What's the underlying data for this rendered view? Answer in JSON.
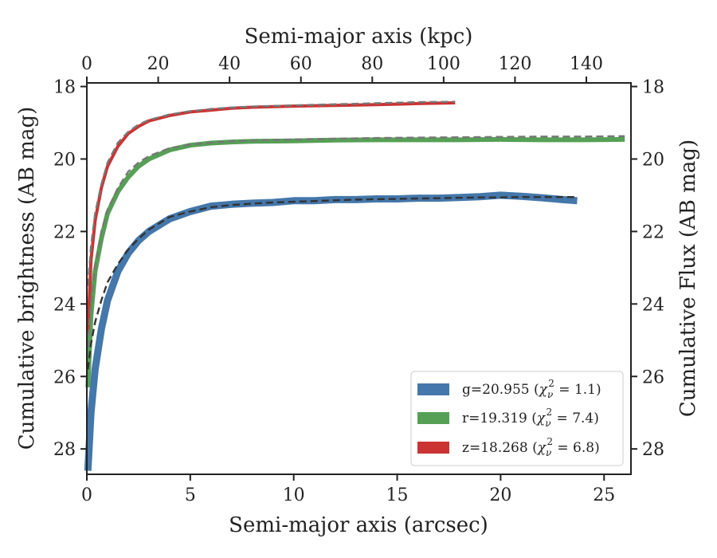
{
  "chart_data": {
    "type": "line",
    "xlabel": "Semi-major axis (arcsec)",
    "ylabel": "Cumulative brightness (AB mag)",
    "x2label": "Semi-major axis (kpc)",
    "y2label": "Cumulative Flux (AB mag)",
    "xlim": [
      0,
      26.3
    ],
    "ylim": [
      28.7,
      17.9
    ],
    "x2lim": [
      0,
      152.5
    ],
    "y_inverted": true,
    "grid": false,
    "legend_position": "lower-right",
    "x_ticks": [
      0,
      5,
      10,
      15,
      20,
      25
    ],
    "x_tick_labels": [
      "0",
      "5",
      "10",
      "15",
      "20",
      "25"
    ],
    "y_ticks": [
      18,
      20,
      22,
      24,
      26,
      28
    ],
    "y_tick_labels": [
      "18",
      "20",
      "22",
      "24",
      "26",
      "28"
    ],
    "x2_ticks": [
      0,
      20,
      40,
      60,
      80,
      100,
      120,
      140
    ],
    "x2_tick_labels": [
      "0",
      "20",
      "40",
      "60",
      "80",
      "100",
      "120",
      "140"
    ],
    "series": [
      {
        "name": "g=20.955",
        "chi2": "1.1",
        "color": "#4477aa",
        "x": [
          0.05,
          0.2,
          0.4,
          0.7,
          1.0,
          1.5,
          2.0,
          2.5,
          3.0,
          4.0,
          5.0,
          6.0,
          7.0,
          8.0,
          9.0,
          10.0,
          11.0,
          12.0,
          13.0,
          14.0,
          15.0,
          16.0,
          17.0,
          18.0,
          19.0,
          20.0,
          21.0,
          22.0,
          23.0,
          23.7
        ],
        "values": [
          28.6,
          27.0,
          25.8,
          24.7,
          23.9,
          23.1,
          22.6,
          22.25,
          22.0,
          21.65,
          21.45,
          21.3,
          21.25,
          21.22,
          21.2,
          21.15,
          21.15,
          21.12,
          21.12,
          21.1,
          21.1,
          21.08,
          21.08,
          21.06,
          21.04,
          21.0,
          21.03,
          21.07,
          21.12,
          21.15
        ],
        "model": [
          25.8,
          25.1,
          24.5,
          23.9,
          23.4,
          22.9,
          22.5,
          22.2,
          21.95,
          21.6,
          21.45,
          21.33,
          21.27,
          21.23,
          21.2,
          21.18,
          21.16,
          21.14,
          21.12,
          21.11,
          21.1,
          21.09,
          21.08,
          21.07,
          21.06,
          21.06,
          21.05,
          21.05,
          21.05,
          21.05
        ]
      },
      {
        "name": "r=19.319",
        "chi2": "7.4",
        "color": "#55a055",
        "x": [
          0.05,
          0.2,
          0.4,
          0.7,
          1.0,
          1.5,
          2.0,
          2.5,
          3.0,
          4.0,
          5.0,
          6.0,
          7.0,
          8.0,
          10.0,
          12.0,
          14.0,
          16.0,
          18.0,
          20.0,
          22.0,
          24.0,
          26.0
        ],
        "values": [
          26.3,
          24.3,
          23.1,
          22.2,
          21.5,
          20.9,
          20.5,
          20.2,
          20.0,
          19.75,
          19.62,
          19.56,
          19.53,
          19.51,
          19.5,
          19.48,
          19.47,
          19.47,
          19.47,
          19.46,
          19.47,
          19.47,
          19.46
        ],
        "model": [
          25.2,
          24.0,
          23.0,
          22.0,
          21.4,
          20.8,
          20.35,
          20.1,
          19.92,
          19.7,
          19.6,
          19.55,
          19.51,
          19.49,
          19.46,
          19.44,
          19.42,
          19.41,
          19.4,
          19.39,
          19.38,
          19.38,
          19.37
        ]
      },
      {
        "name": "z=18.268",
        "chi2": "6.8",
        "color": "#cc3333",
        "x": [
          0.05,
          0.2,
          0.4,
          0.7,
          1.0,
          1.5,
          2.0,
          2.5,
          3.0,
          4.0,
          5.0,
          6.0,
          7.0,
          8.0,
          10.0,
          12.0,
          14.0,
          16.0,
          17.8
        ],
        "values": [
          24.8,
          22.8,
          21.7,
          20.8,
          20.2,
          19.65,
          19.3,
          19.1,
          18.95,
          18.8,
          18.7,
          18.65,
          18.6,
          18.57,
          18.54,
          18.52,
          18.5,
          18.47,
          18.45
        ],
        "model": [
          23.5,
          22.4,
          21.5,
          20.7,
          20.1,
          19.55,
          19.25,
          19.05,
          18.92,
          18.77,
          18.68,
          18.62,
          18.58,
          18.55,
          18.52,
          18.49,
          18.46,
          18.43,
          18.42
        ]
      }
    ]
  },
  "legend": [
    {
      "prefix": "g=20.955 (",
      "chi": "χ",
      "sub": "ν",
      "sup": "2",
      "suffix": " = 1.1)"
    },
    {
      "prefix": "r=19.319 (",
      "chi": "χ",
      "sub": "ν",
      "sup": "2",
      "suffix": " = 7.4)"
    },
    {
      "prefix": "z=18.268 (",
      "chi": "χ",
      "sub": "ν",
      "sup": "2",
      "suffix": " = 6.8)"
    }
  ]
}
